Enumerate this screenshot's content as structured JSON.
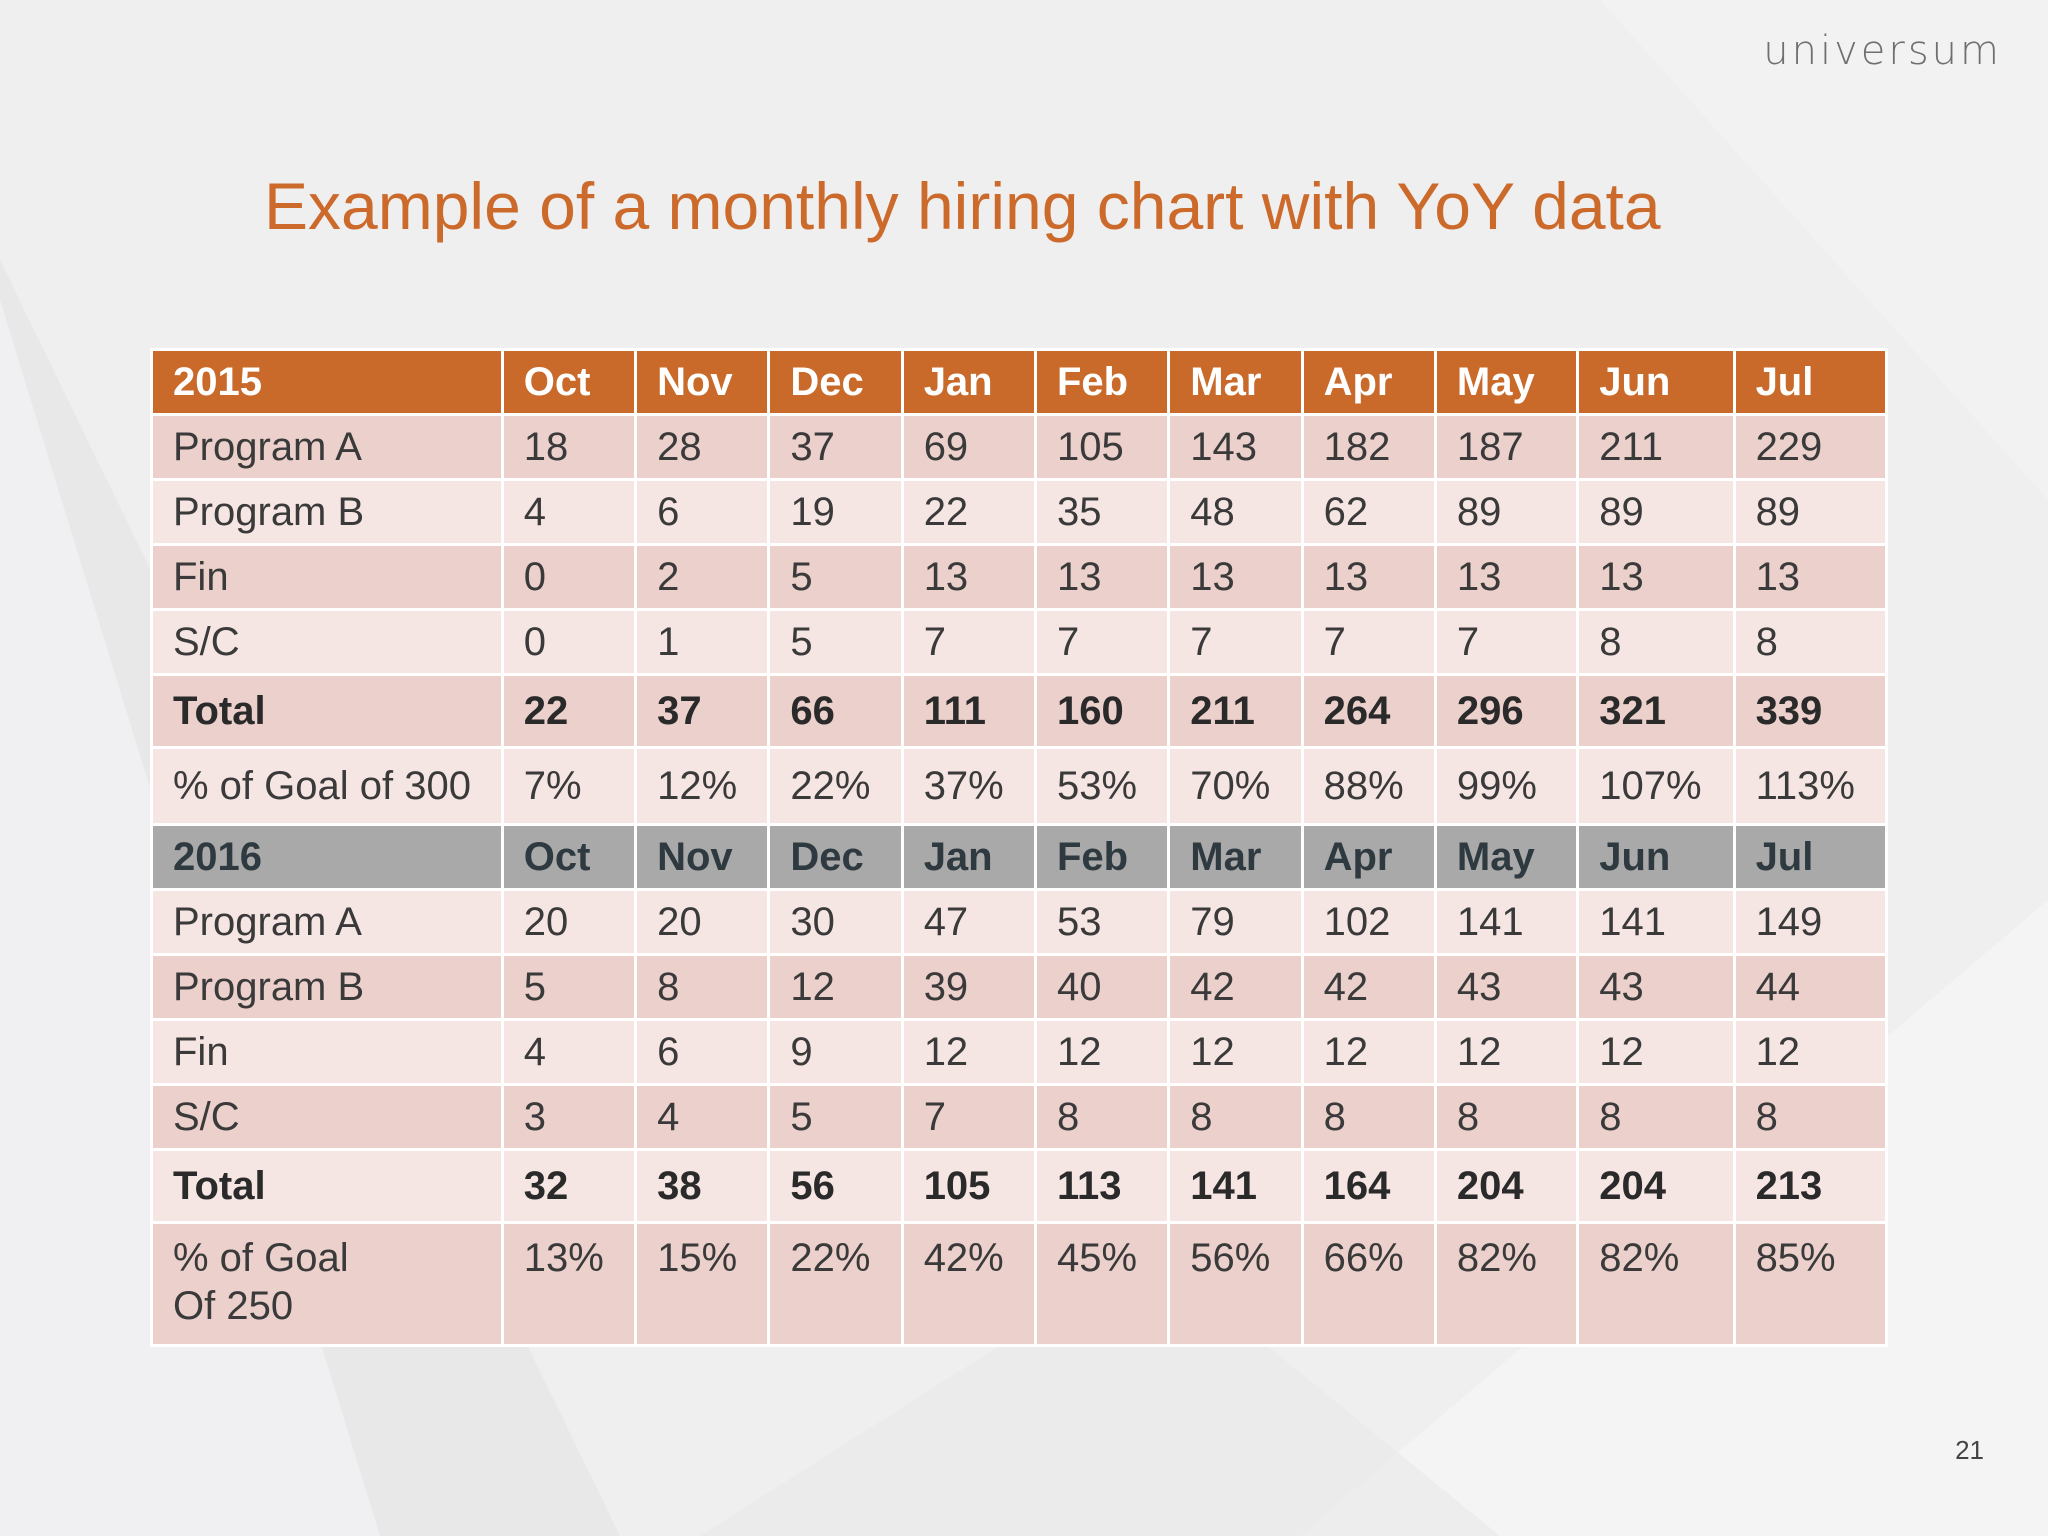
{
  "logo": "universum",
  "title": "Example of a monthly hiring chart with YoY data",
  "page_number": "21",
  "colors": {
    "title": "#cc6a2c",
    "header_2015": "#c96a2b",
    "header_2016": "#a9a9a9",
    "row_dark": "#ecd0cc",
    "row_light": "#f6e6e3"
  },
  "table_2015": {
    "header": [
      "2015",
      "Oct",
      "Nov",
      "Dec",
      "Jan",
      "Feb",
      "Mar",
      "Apr",
      "May",
      "Jun",
      "Jul"
    ],
    "rows": [
      [
        "Program A",
        "18",
        "28",
        "37",
        "69",
        "105",
        "143",
        "182",
        "187",
        "211",
        "229"
      ],
      [
        "Program B",
        "4",
        "6",
        "19",
        "22",
        "35",
        "48",
        "62",
        "89",
        "89",
        "89"
      ],
      [
        "Fin",
        "0",
        "2",
        "5",
        "13",
        "13",
        "13",
        "13",
        "13",
        "13",
        "13"
      ],
      [
        "S/C",
        "0",
        "1",
        "5",
        "7",
        "7",
        "7",
        "7",
        "7",
        "8",
        "8"
      ]
    ],
    "total": [
      "Total",
      "22",
      "37",
      "66",
      "111",
      "160",
      "211",
      "264",
      "296",
      "321",
      "339"
    ],
    "percent": [
      "% of Goal of 300",
      "7%",
      "12%",
      "22%",
      "37%",
      "53%",
      "70%",
      "88%",
      "99%",
      "107%",
      "113%"
    ]
  },
  "table_2016": {
    "header": [
      "2016",
      "Oct",
      "Nov",
      "Dec",
      "Jan",
      "Feb",
      "Mar",
      "Apr",
      "May",
      "Jun",
      "Jul"
    ],
    "rows": [
      [
        "Program A",
        "20",
        "20",
        "30",
        "47",
        "53",
        "79",
        "102",
        "141",
        "141",
        "149"
      ],
      [
        "Program B",
        "5",
        "8",
        "12",
        "39",
        "40",
        "42",
        "42",
        "43",
        "43",
        "44"
      ],
      [
        "Fin",
        "4",
        "6",
        "9",
        "12",
        "12",
        "12",
        "12",
        "12",
        "12",
        "12"
      ],
      [
        "S/C",
        "3",
        "4",
        "5",
        "7",
        "8",
        "8",
        "8",
        "8",
        "8",
        "8"
      ]
    ],
    "total": [
      "Total",
      "32",
      "38",
      "56",
      "105",
      "113",
      "141",
      "164",
      "204",
      "204",
      "213"
    ],
    "percent_label_lines": [
      "% of Goal",
      "Of 250"
    ],
    "percent": [
      "13%",
      "15%",
      "22%",
      "42%",
      "45%",
      "56%",
      "66%",
      "82%",
      "82%",
      "85%"
    ]
  }
}
